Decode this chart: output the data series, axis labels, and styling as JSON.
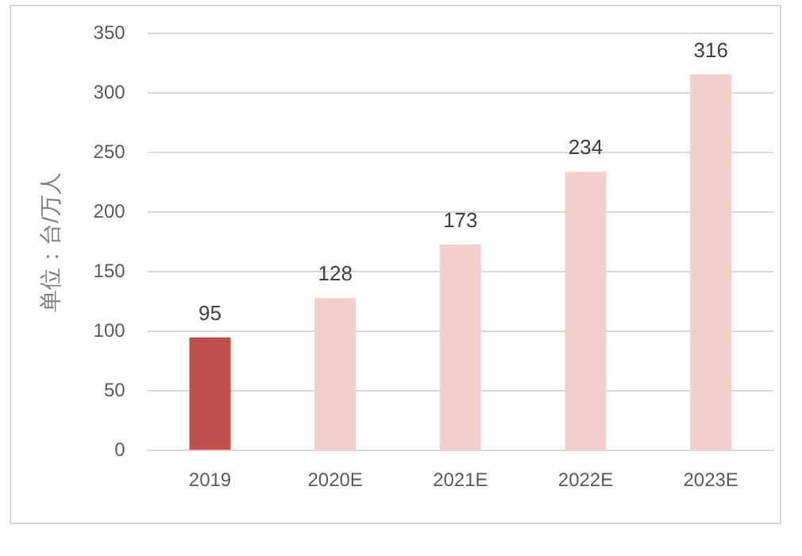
{
  "chart_data": {
    "type": "bar",
    "ylabel": "单位：台/万人",
    "categories": [
      "2019",
      "2020E",
      "2021E",
      "2022E",
      "2023E"
    ],
    "series": [
      {
        "colors": [
          "#c0504d",
          "#f4cfce",
          "#f4cfce",
          "#f4cfce",
          "#f4cfce"
        ],
        "values": [
          95,
          128,
          173,
          234,
          316
        ]
      }
    ],
    "ylim": [
      0,
      350
    ],
    "yticks": [
      0,
      50,
      100,
      150,
      200,
      250,
      300,
      350
    ],
    "grid": "y",
    "data_labels": true,
    "legend": false
  }
}
